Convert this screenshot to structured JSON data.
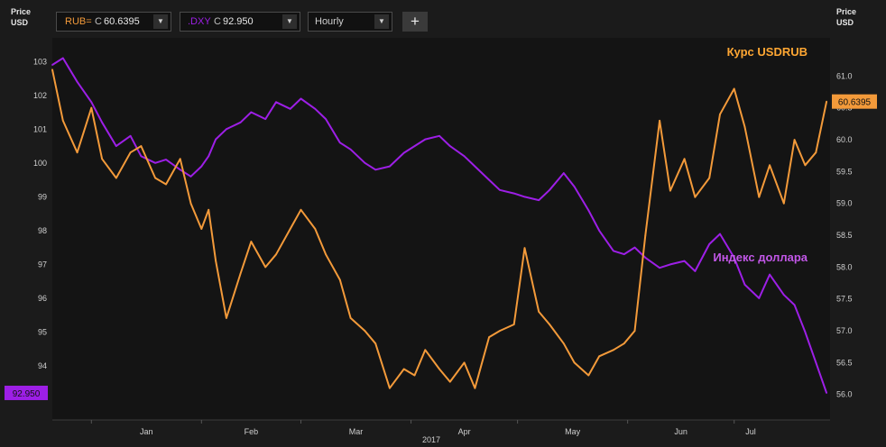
{
  "toolbar": {
    "series1": {
      "symbol": "RUB=",
      "prefix": "C",
      "value": "60.6395"
    },
    "series2": {
      "symbol": ".DXY",
      "prefix": "C",
      "value": "92.950"
    },
    "interval": "Hourly",
    "dropdown_glyph": "▼",
    "add_glyph": "+"
  },
  "left_axis": {
    "line1": "Price",
    "line2": "USD"
  },
  "right_axis": {
    "line1": "Price",
    "line2": "USD"
  },
  "colors": {
    "rub": "#f39a3a",
    "dxy": "#9d1fe6",
    "bg": "#1b1b1b",
    "plot": "#141414",
    "dxy_label": "#c257e8",
    "rub_label": "#ffa733"
  },
  "chart_data": {
    "type": "line",
    "x_labels": [
      "Jan",
      "Feb",
      "Mar",
      "Apr",
      "May",
      "Jun",
      "Jul"
    ],
    "x_year": "2017",
    "left_ticks": [
      "103",
      "102",
      "101",
      "100",
      "99",
      "98",
      "97",
      "96",
      "95",
      "94"
    ],
    "right_ticks": [
      "61.0",
      "60.5",
      "60.0",
      "59.5",
      "59.0",
      "58.5",
      "58.0",
      "57.5",
      "57.0",
      "56.5",
      "56.0"
    ],
    "left_ylim": [
      92.4,
      103.7
    ],
    "right_ylim": [
      55.6,
      61.6
    ],
    "x_range": [
      "2016-12-21",
      "2017-07-28"
    ],
    "annotations": {
      "rub": "Курс USDRUB",
      "dxy": "Индекс доллара"
    },
    "last_labels": {
      "rub": "60.6395",
      "dxy": "92.950"
    },
    "series": [
      {
        "name": "Курс USDRUB",
        "axis": "right",
        "x": [
          "2016-12-21",
          "2016-12-24",
          "2016-12-28",
          "2017-01-01",
          "2017-01-04",
          "2017-01-08",
          "2017-01-12",
          "2017-01-15",
          "2017-01-19",
          "2017-01-22",
          "2017-01-26",
          "2017-01-29",
          "2017-02-01",
          "2017-02-03",
          "2017-02-05",
          "2017-02-08",
          "2017-02-12",
          "2017-02-15",
          "2017-02-19",
          "2017-02-22",
          "2017-02-26",
          "2017-03-01",
          "2017-03-05",
          "2017-03-08",
          "2017-03-12",
          "2017-03-15",
          "2017-03-19",
          "2017-03-22",
          "2017-03-26",
          "2017-03-30",
          "2017-04-02",
          "2017-04-05",
          "2017-04-09",
          "2017-04-12",
          "2017-04-16",
          "2017-04-19",
          "2017-04-23",
          "2017-04-26",
          "2017-04-30",
          "2017-05-03",
          "2017-05-07",
          "2017-05-10",
          "2017-05-14",
          "2017-05-17",
          "2017-05-21",
          "2017-05-24",
          "2017-05-28",
          "2017-05-31",
          "2017-06-03",
          "2017-06-06",
          "2017-06-10",
          "2017-06-13",
          "2017-06-17",
          "2017-06-20",
          "2017-06-24",
          "2017-06-27",
          "2017-07-01",
          "2017-07-04",
          "2017-07-08",
          "2017-07-11",
          "2017-07-15",
          "2017-07-18",
          "2017-07-21",
          "2017-07-24",
          "2017-07-27"
        ],
        "values": [
          61.1,
          60.3,
          59.8,
          60.5,
          59.7,
          59.4,
          59.8,
          59.9,
          59.4,
          59.3,
          59.7,
          59.0,
          58.6,
          58.9,
          58.1,
          57.2,
          57.9,
          58.4,
          58.0,
          58.2,
          58.6,
          58.9,
          58.6,
          58.2,
          57.8,
          57.2,
          57.0,
          56.8,
          56.1,
          56.4,
          56.3,
          56.7,
          56.4,
          56.2,
          56.5,
          56.1,
          56.9,
          57.0,
          57.1,
          58.3,
          57.3,
          57.1,
          56.8,
          56.5,
          56.3,
          56.6,
          56.7,
          56.8,
          57.0,
          58.5,
          60.3,
          59.2,
          59.7,
          59.1,
          59.4,
          60.4,
          60.8,
          60.2,
          59.1,
          59.6,
          59.0,
          60.0,
          59.6,
          59.8,
          60.6
        ]
      },
      {
        "name": "Индекс доллара",
        "axis": "left",
        "x": [
          "2016-12-21",
          "2016-12-24",
          "2016-12-28",
          "2017-01-01",
          "2017-01-04",
          "2017-01-08",
          "2017-01-12",
          "2017-01-15",
          "2017-01-19",
          "2017-01-22",
          "2017-01-26",
          "2017-01-29",
          "2017-02-01",
          "2017-02-03",
          "2017-02-05",
          "2017-02-08",
          "2017-02-12",
          "2017-02-15",
          "2017-02-19",
          "2017-02-22",
          "2017-02-26",
          "2017-03-01",
          "2017-03-05",
          "2017-03-08",
          "2017-03-12",
          "2017-03-15",
          "2017-03-19",
          "2017-03-22",
          "2017-03-26",
          "2017-03-30",
          "2017-04-02",
          "2017-04-05",
          "2017-04-09",
          "2017-04-12",
          "2017-04-16",
          "2017-04-19",
          "2017-04-23",
          "2017-04-26",
          "2017-04-30",
          "2017-05-03",
          "2017-05-07",
          "2017-05-10",
          "2017-05-14",
          "2017-05-17",
          "2017-05-21",
          "2017-05-24",
          "2017-05-28",
          "2017-05-31",
          "2017-06-03",
          "2017-06-06",
          "2017-06-10",
          "2017-06-13",
          "2017-06-17",
          "2017-06-20",
          "2017-06-24",
          "2017-06-27",
          "2017-07-01",
          "2017-07-04",
          "2017-07-08",
          "2017-07-11",
          "2017-07-15",
          "2017-07-18",
          "2017-07-21",
          "2017-07-24",
          "2017-07-27"
        ],
        "values": [
          102.9,
          103.1,
          102.4,
          101.8,
          101.2,
          100.5,
          100.8,
          100.2,
          100.0,
          100.1,
          99.8,
          99.6,
          99.9,
          100.2,
          100.7,
          101.0,
          101.2,
          101.5,
          101.3,
          101.8,
          101.6,
          101.9,
          101.6,
          101.3,
          100.6,
          100.4,
          100.0,
          99.8,
          99.9,
          100.3,
          100.5,
          100.7,
          100.8,
          100.5,
          100.2,
          99.9,
          99.5,
          99.2,
          99.1,
          99.0,
          98.9,
          99.2,
          99.7,
          99.3,
          98.6,
          98.0,
          97.4,
          97.3,
          97.5,
          97.2,
          96.9,
          97.0,
          97.1,
          96.8,
          97.6,
          97.9,
          97.2,
          96.4,
          96.0,
          96.7,
          96.1,
          95.8,
          95.0,
          94.1,
          93.2
        ]
      }
    ]
  }
}
